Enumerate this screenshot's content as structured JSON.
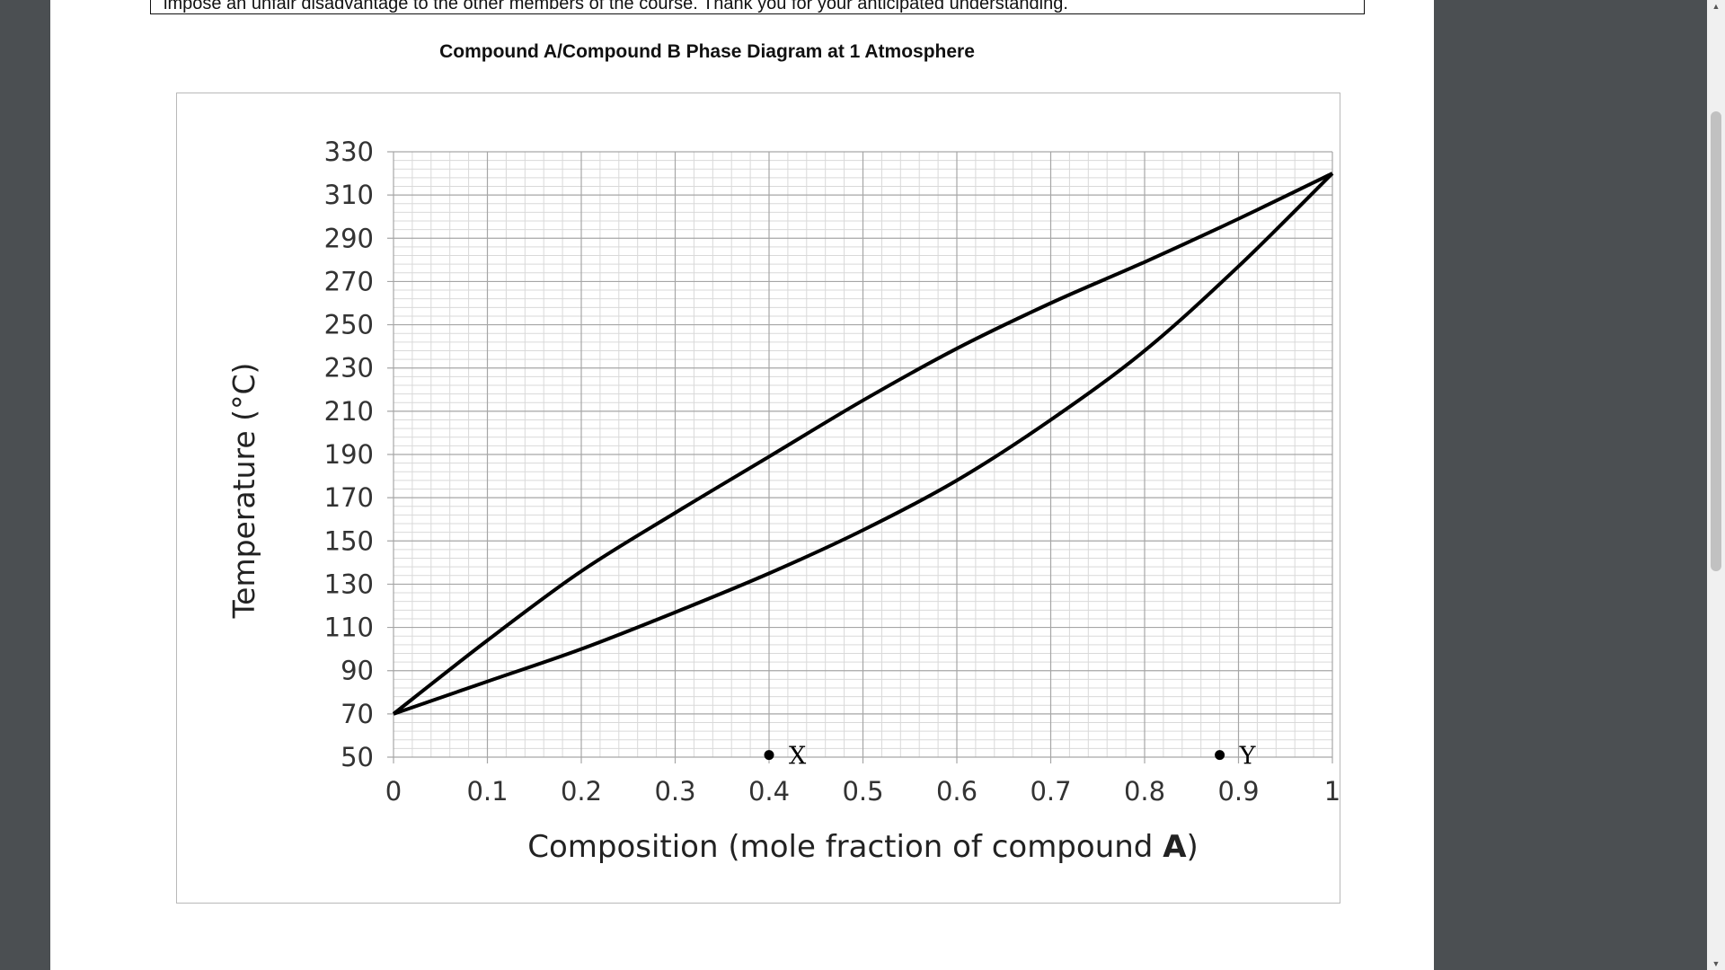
{
  "document": {
    "notice_text": "impose an unfair disadvantage to the other members of the course.   Thank you for your anticipated understanding."
  },
  "chart_data": {
    "type": "line",
    "title": "Compound A/Compound B Phase Diagram at 1 Atmosphere",
    "xlabel_prefix": "Composition (mole fraction of compound ",
    "xlabel_bold": "A",
    "xlabel_suffix": ")",
    "ylabel": "Temperature (°C)",
    "xlim": [
      0,
      1
    ],
    "ylim": [
      50,
      330
    ],
    "xticks": [
      0,
      0.1,
      0.2,
      0.3,
      0.4,
      0.5,
      0.6,
      0.7,
      0.8,
      0.9,
      1
    ],
    "xtick_labels": [
      "0",
      "0.1",
      "0.2",
      "0.3",
      "0.4",
      "0.5",
      "0.6",
      "0.7",
      "0.8",
      "0.9",
      "1"
    ],
    "yticks": [
      50,
      70,
      90,
      110,
      130,
      150,
      170,
      190,
      210,
      230,
      250,
      270,
      290,
      310,
      330
    ],
    "ytick_labels": [
      "50",
      "70",
      "90",
      "110",
      "130",
      "150",
      "170",
      "190",
      "210",
      "230",
      "250",
      "270",
      "290",
      "310",
      "330"
    ],
    "grid": true,
    "series": [
      {
        "x": [
          0,
          0.1,
          0.2,
          0.3,
          0.4,
          0.5,
          0.6,
          0.7,
          0.8,
          0.9,
          1
        ],
        "y": [
          70,
          104,
          136,
          163,
          189,
          215,
          239,
          260,
          279,
          299,
          320
        ]
      },
      {
        "x": [
          0,
          0.1,
          0.2,
          0.3,
          0.4,
          0.5,
          0.6,
          0.7,
          0.8,
          0.9,
          1
        ],
        "y": [
          70,
          85,
          100,
          117,
          135,
          155,
          178,
          206,
          238,
          277,
          320
        ]
      }
    ],
    "points": [
      {
        "label": "X",
        "x": 0.4,
        "y": 51
      },
      {
        "label": "Y",
        "x": 0.88,
        "y": 51
      }
    ],
    "colors": {
      "line": "#000000",
      "grid_major": "#a6a6a6",
      "grid_minor": "#d9d9d9"
    }
  }
}
